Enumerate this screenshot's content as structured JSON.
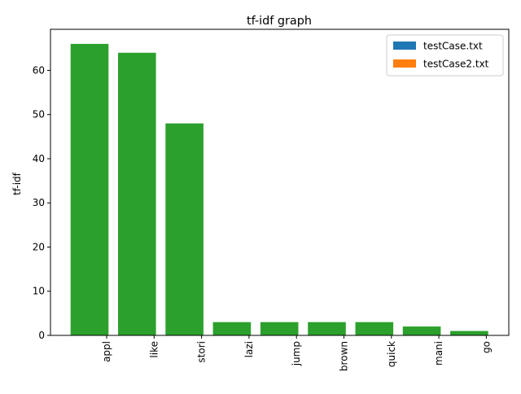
{
  "chart_data": {
    "type": "bar",
    "title": "tf-idf graph",
    "xlabel": "",
    "ylabel": "tf-idf",
    "categories": [
      "appl",
      "like",
      "stori",
      "lazi",
      "jump",
      "brown",
      "quick",
      "mani",
      "go"
    ],
    "series": [
      {
        "name": "testCase.txt",
        "color": "#1f77b4",
        "values": [
          0,
          0,
          0,
          0,
          0,
          0,
          0,
          0,
          0
        ]
      },
      {
        "name": "testCase2.txt",
        "color": "#ff7f0e",
        "values": [
          0,
          0,
          0,
          0,
          0,
          0,
          0,
          0,
          0
        ]
      },
      {
        "color": "#2ca02c",
        "values": [
          66,
          64,
          48,
          3,
          3,
          3,
          3,
          2,
          1
        ]
      }
    ],
    "ylim": [
      0,
      69.3
    ],
    "yticks": [
      0,
      10,
      20,
      30,
      40,
      50,
      60
    ],
    "grid": false,
    "legend_position": "top-right"
  }
}
